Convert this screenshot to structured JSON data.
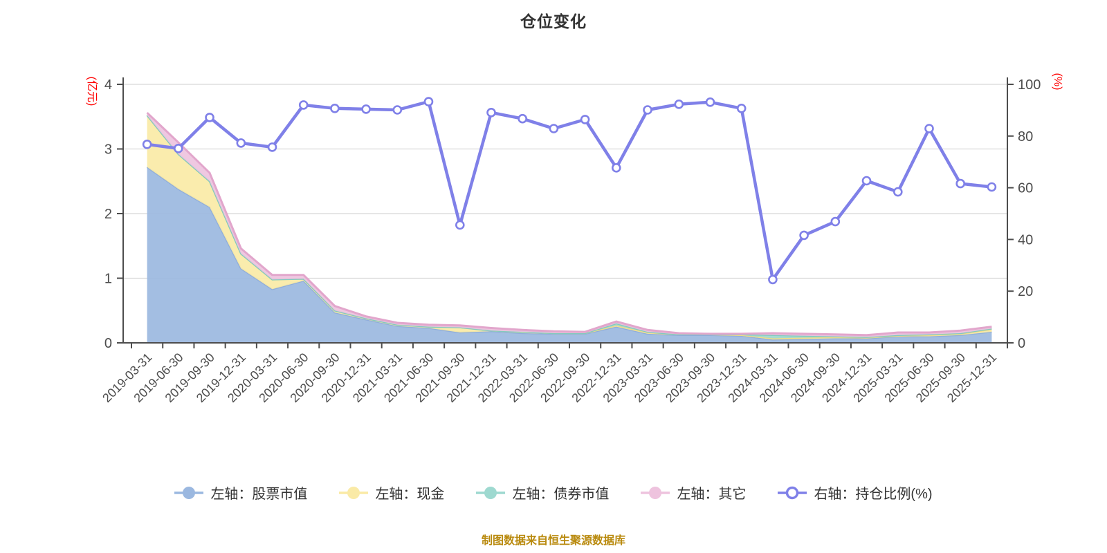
{
  "title": "仓位变化",
  "footer": "制图数据来自恒生聚源数据库",
  "colors": {
    "title_text": "#333333",
    "axis_line": "#4d4d4d",
    "tick_text": "#4d4d4d",
    "grid_line": "#d8d8d8",
    "axis_name_red": "#ff0000",
    "footer_text": "#b98a0e",
    "stock_fill": "#9bb8e0",
    "stock_stroke": "#8fadda",
    "cash_fill": "#faeaa6",
    "cash_stroke": "#f0db85",
    "bond_fill": "#9ed9d0",
    "bond_stroke": "#82cabe",
    "other_fill": "#eec3de",
    "other_stroke": "#e2a6cc",
    "ratio_line": "#7f80e8",
    "marker_fill": "#ffffff"
  },
  "chart_data": {
    "type": "area",
    "subtype": "stacked-area-with-right-axis-line",
    "title": "仓位变化",
    "grid": true,
    "legend_position": "bottom",
    "categories": [
      "2019-03-31",
      "2019-06-30",
      "2019-09-30",
      "2019-12-31",
      "2020-03-31",
      "2020-06-30",
      "2020-09-30",
      "2020-12-31",
      "2021-03-31",
      "2021-06-30",
      "2021-09-30",
      "2021-12-31",
      "2022-03-31",
      "2022-06-30",
      "2022-09-30",
      "2022-12-31",
      "2023-03-31",
      "2023-06-30",
      "2023-09-30",
      "2023-12-31",
      "2024-03-31",
      "2024-06-30",
      "2024-09-30",
      "2024-12-31",
      "2025-03-31",
      "2025-06-30",
      "2025-09-30",
      "2025-12-31"
    ],
    "left_axis": {
      "label": "(亿元)",
      "min": 0,
      "max": 4,
      "ticks": [
        0,
        1,
        2,
        3,
        4
      ]
    },
    "right_axis": {
      "label": "(%)",
      "min": 0,
      "max": 100,
      "ticks": [
        0,
        20,
        40,
        60,
        80,
        100
      ]
    },
    "series": [
      {
        "name": "左轴：股票市值",
        "type": "area",
        "stack": true,
        "axis": "left",
        "values": [
          2.72,
          2.38,
          2.1,
          1.15,
          0.83,
          0.96,
          0.47,
          0.36,
          0.26,
          0.23,
          0.16,
          0.18,
          0.15,
          0.14,
          0.14,
          0.25,
          0.14,
          0.12,
          0.12,
          0.11,
          0.05,
          0.06,
          0.07,
          0.07,
          0.1,
          0.1,
          0.12,
          0.17
        ]
      },
      {
        "name": "左轴：现金",
        "type": "area",
        "stack": true,
        "axis": "left",
        "values": [
          0.8,
          0.54,
          0.4,
          0.23,
          0.15,
          0.03,
          0.03,
          0.02,
          0.02,
          0.02,
          0.08,
          0.01,
          0.02,
          0.01,
          0.01,
          0.02,
          0.02,
          0.01,
          0.01,
          0.01,
          0.02,
          0.02,
          0.02,
          0.01,
          0.01,
          0.02,
          0.02,
          0.04
        ]
      },
      {
        "name": "左轴：债券市值",
        "type": "area",
        "stack": true,
        "axis": "left",
        "values": [
          0,
          0,
          0,
          0,
          0,
          0,
          0,
          0,
          0,
          0,
          0,
          0,
          0,
          0,
          0,
          0.03,
          0.01,
          0,
          0,
          0.01,
          0.05,
          0.03,
          0.01,
          0.01,
          0.01,
          0.01,
          0.01,
          0.01
        ]
      },
      {
        "name": "左轴：其它",
        "type": "area",
        "stack": true,
        "axis": "left",
        "values": [
          0.04,
          0.18,
          0.13,
          0.08,
          0.07,
          0.06,
          0.07,
          0.03,
          0.03,
          0.03,
          0.03,
          0.04,
          0.03,
          0.03,
          0.02,
          0.03,
          0.03,
          0.02,
          0.01,
          0.01,
          0.03,
          0.03,
          0.03,
          0.03,
          0.04,
          0.03,
          0.04,
          0.03
        ]
      },
      {
        "name": "右轴：持仓比例(%)",
        "type": "line",
        "stack": false,
        "axis": "right",
        "values": [
          76.8,
          75.2,
          87.2,
          77.3,
          75.7,
          92.0,
          90.7,
          90.4,
          90.1,
          93.3,
          45.6,
          89.1,
          86.7,
          82.9,
          86.4,
          67.7,
          90.1,
          92.3,
          93.1,
          90.7,
          24.5,
          41.6,
          46.9,
          62.7,
          58.4,
          82.9,
          61.6,
          60.3
        ]
      }
    ]
  }
}
